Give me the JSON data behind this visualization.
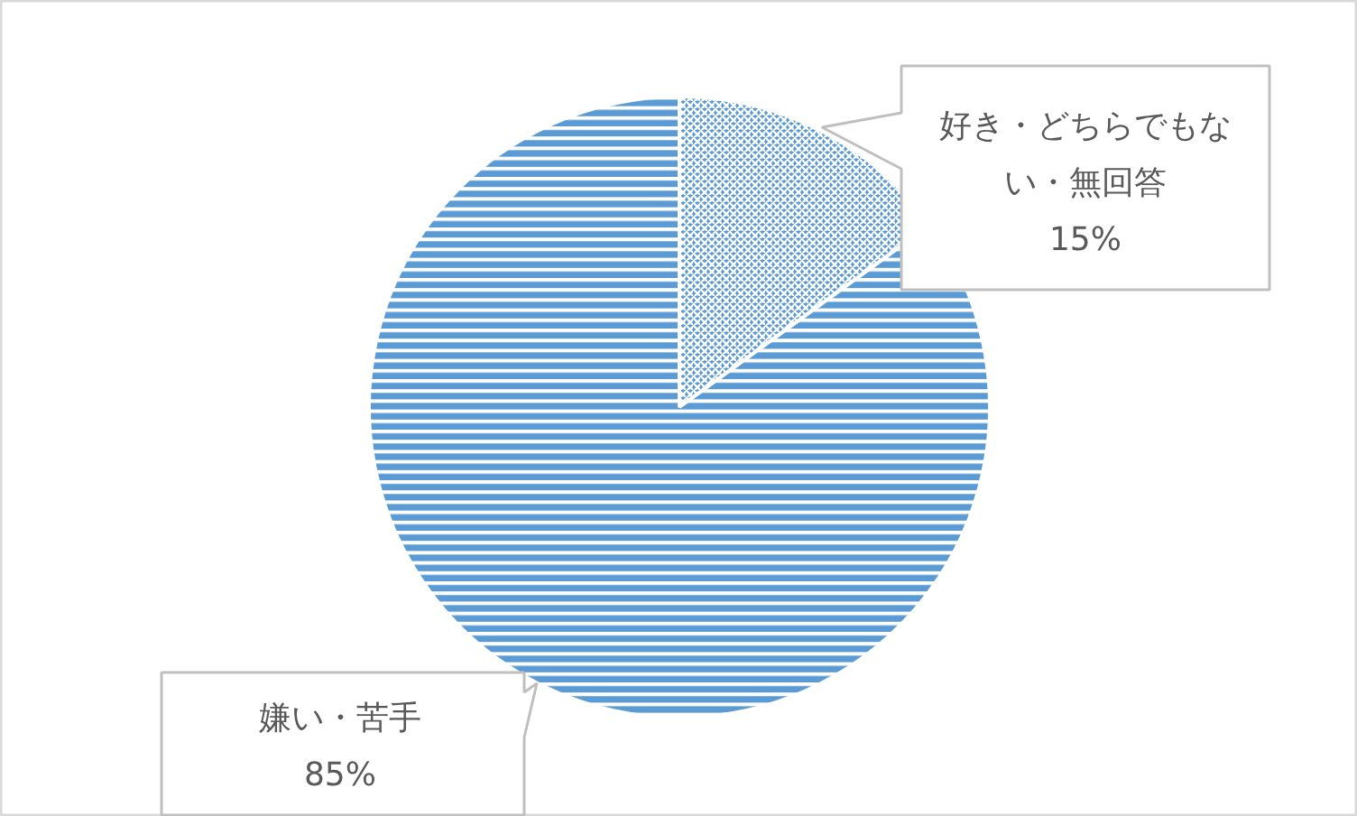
{
  "chart_data": {
    "type": "pie",
    "categories": [
      "好き・どちらでもない・無回答",
      "嫌い・苦手"
    ],
    "values": [
      15,
      85
    ],
    "colors": [
      "#5b9bd5",
      "#5b9bd5"
    ],
    "value_labels": [
      "15%",
      "85%"
    ]
  }
}
